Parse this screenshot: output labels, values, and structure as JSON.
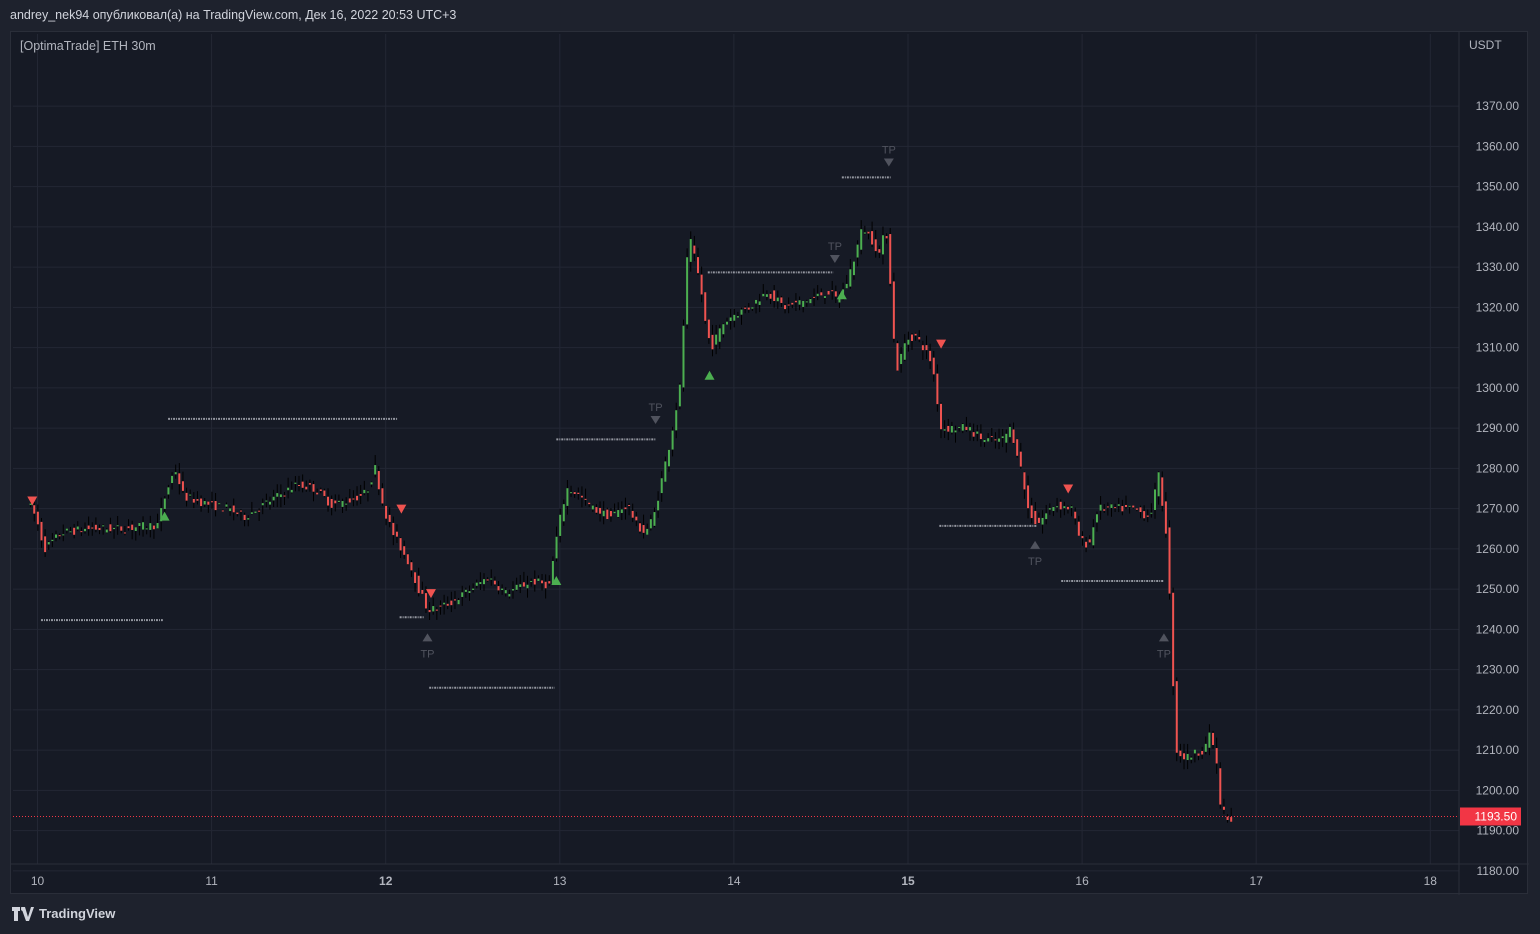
{
  "header": {
    "text": "andrey_nek94 опубликовал(а) на TradingView.com, Дек 16, 2022 20:53 UTC+3"
  },
  "legend": {
    "text": "[OptimaTrade] ETH 30m"
  },
  "footer": {
    "brand": "TradingView"
  },
  "colors": {
    "up": "#4caf50",
    "down": "#ef5350",
    "wick": "#000000",
    "grid": "#232734",
    "tp": "#50535e",
    "level": "#9598a1",
    "priceLine": "#f23645"
  },
  "chart_data": {
    "type": "candlestick",
    "symbol": "ETH",
    "timeframe": "30m",
    "y_unit": "USDT",
    "ylim": [
      1177,
      1377
    ],
    "xlim": [
      9.95,
      18.1
    ],
    "y_ticks": [
      "1370.00",
      "1360.00",
      "1350.00",
      "1340.00",
      "1330.00",
      "1320.00",
      "1310.00",
      "1300.00",
      "1290.00",
      "1280.00",
      "1270.00",
      "1260.00",
      "1250.00",
      "1240.00",
      "1230.00",
      "1220.00",
      "1210.00",
      "1200.00",
      "1190.00",
      "1180.00"
    ],
    "x_ticks": [
      "10",
      "11",
      "12",
      "13",
      "14",
      "15",
      "16",
      "17",
      "18"
    ],
    "bold_x_ticks": [
      "12",
      "15"
    ],
    "last_price": "1193.50",
    "price_path": [
      [
        9.95,
        1272
      ],
      [
        10.0,
        1268
      ],
      [
        10.05,
        1260
      ],
      [
        10.15,
        1264
      ],
      [
        10.3,
        1265
      ],
      [
        10.5,
        1265
      ],
      [
        10.7,
        1266
      ],
      [
        10.75,
        1274
      ],
      [
        10.8,
        1280
      ],
      [
        10.85,
        1273
      ],
      [
        11.0,
        1271
      ],
      [
        11.1,
        1270
      ],
      [
        11.2,
        1268
      ],
      [
        11.35,
        1272
      ],
      [
        11.5,
        1276
      ],
      [
        11.6,
        1275
      ],
      [
        11.7,
        1271
      ],
      [
        11.8,
        1272
      ],
      [
        11.9,
        1274
      ],
      [
        11.95,
        1280
      ],
      [
        12.0,
        1270
      ],
      [
        12.05,
        1264
      ],
      [
        12.1,
        1260
      ],
      [
        12.15,
        1256
      ],
      [
        12.2,
        1250
      ],
      [
        12.25,
        1245
      ],
      [
        12.3,
        1245
      ],
      [
        12.4,
        1247
      ],
      [
        12.5,
        1250
      ],
      [
        12.6,
        1253
      ],
      [
        12.7,
        1249
      ],
      [
        12.85,
        1252
      ],
      [
        12.95,
        1251
      ],
      [
        13.0,
        1265
      ],
      [
        13.05,
        1275
      ],
      [
        13.1,
        1274
      ],
      [
        13.2,
        1270
      ],
      [
        13.3,
        1268
      ],
      [
        13.4,
        1271
      ],
      [
        13.45,
        1266
      ],
      [
        13.5,
        1264
      ],
      [
        13.55,
        1268
      ],
      [
        13.6,
        1278
      ],
      [
        13.65,
        1288
      ],
      [
        13.7,
        1300
      ],
      [
        13.72,
        1315
      ],
      [
        13.75,
        1338
      ],
      [
        13.78,
        1333
      ],
      [
        13.82,
        1325
      ],
      [
        13.85,
        1315
      ],
      [
        13.88,
        1310
      ],
      [
        13.95,
        1316
      ],
      [
        14.0,
        1318
      ],
      [
        14.1,
        1320
      ],
      [
        14.2,
        1324
      ],
      [
        14.3,
        1320
      ],
      [
        14.45,
        1322
      ],
      [
        14.55,
        1324
      ],
      [
        14.6,
        1322
      ],
      [
        14.65,
        1325
      ],
      [
        14.7,
        1332
      ],
      [
        14.75,
        1340
      ],
      [
        14.8,
        1337
      ],
      [
        14.85,
        1333
      ],
      [
        14.88,
        1340
      ],
      [
        14.9,
        1335
      ],
      [
        14.92,
        1315
      ],
      [
        14.95,
        1305
      ],
      [
        15.0,
        1312
      ],
      [
        15.05,
        1313
      ],
      [
        15.1,
        1310
      ],
      [
        15.15,
        1306
      ],
      [
        15.2,
        1290
      ],
      [
        15.25,
        1290
      ],
      [
        15.35,
        1290
      ],
      [
        15.45,
        1287
      ],
      [
        15.55,
        1287
      ],
      [
        15.6,
        1290
      ],
      [
        15.65,
        1282
      ],
      [
        15.7,
        1270
      ],
      [
        15.75,
        1266
      ],
      [
        15.85,
        1271
      ],
      [
        15.95,
        1270
      ],
      [
        16.0,
        1262
      ],
      [
        16.05,
        1261
      ],
      [
        16.1,
        1270
      ],
      [
        16.2,
        1270
      ],
      [
        16.3,
        1270
      ],
      [
        16.4,
        1268
      ],
      [
        16.45,
        1278
      ],
      [
        16.5,
        1262
      ],
      [
        16.52,
        1240
      ],
      [
        16.55,
        1210
      ],
      [
        16.6,
        1208
      ],
      [
        16.7,
        1210
      ],
      [
        16.75,
        1214
      ],
      [
        16.78,
        1208
      ],
      [
        16.8,
        1197
      ],
      [
        16.85,
        1192
      ]
    ],
    "signals": [
      {
        "type": "sell",
        "x": 9.97,
        "y": 1272
      },
      {
        "type": "buy",
        "x": 10.73,
        "y": 1268
      },
      {
        "type": "sell",
        "x": 12.09,
        "y": 1270
      },
      {
        "type": "sell",
        "x": 12.26,
        "y": 1249
      },
      {
        "type": "buy",
        "x": 12.98,
        "y": 1252
      },
      {
        "type": "buy",
        "x": 13.86,
        "y": 1303
      },
      {
        "type": "buy",
        "x": 14.62,
        "y": 1323
      },
      {
        "type": "sell",
        "x": 15.19,
        "y": 1311
      },
      {
        "type": "sell",
        "x": 15.92,
        "y": 1275
      }
    ],
    "tp_marks": [
      {
        "dir": "up",
        "x": 12.24,
        "y": 1238,
        "label": "TP"
      },
      {
        "dir": "down",
        "x": 13.55,
        "y": 1292,
        "label": "TP"
      },
      {
        "dir": "down",
        "x": 14.58,
        "y": 1332,
        "label": "TP"
      },
      {
        "dir": "down",
        "x": 14.89,
        "y": 1356,
        "label": "TP"
      },
      {
        "dir": "up",
        "x": 15.73,
        "y": 1261,
        "label": "TP"
      },
      {
        "dir": "up",
        "x": 16.47,
        "y": 1238,
        "label": "TP"
      }
    ],
    "levels": [
      {
        "x1": 10.02,
        "x2": 10.72,
        "y": 1242.3
      },
      {
        "x1": 10.75,
        "x2": 12.07,
        "y": 1292.3
      },
      {
        "x1": 12.08,
        "x2": 12.22,
        "y": 1243
      },
      {
        "x1": 12.25,
        "x2": 12.97,
        "y": 1225.5
      },
      {
        "x1": 12.98,
        "x2": 13.55,
        "y": 1287.2
      },
      {
        "x1": 13.85,
        "x2": 14.57,
        "y": 1328.7
      },
      {
        "x1": 14.62,
        "x2": 14.9,
        "y": 1352.3
      },
      {
        "x1": 15.18,
        "x2": 15.74,
        "y": 1265.7
      },
      {
        "x1": 15.88,
        "x2": 16.47,
        "y": 1252
      }
    ]
  }
}
